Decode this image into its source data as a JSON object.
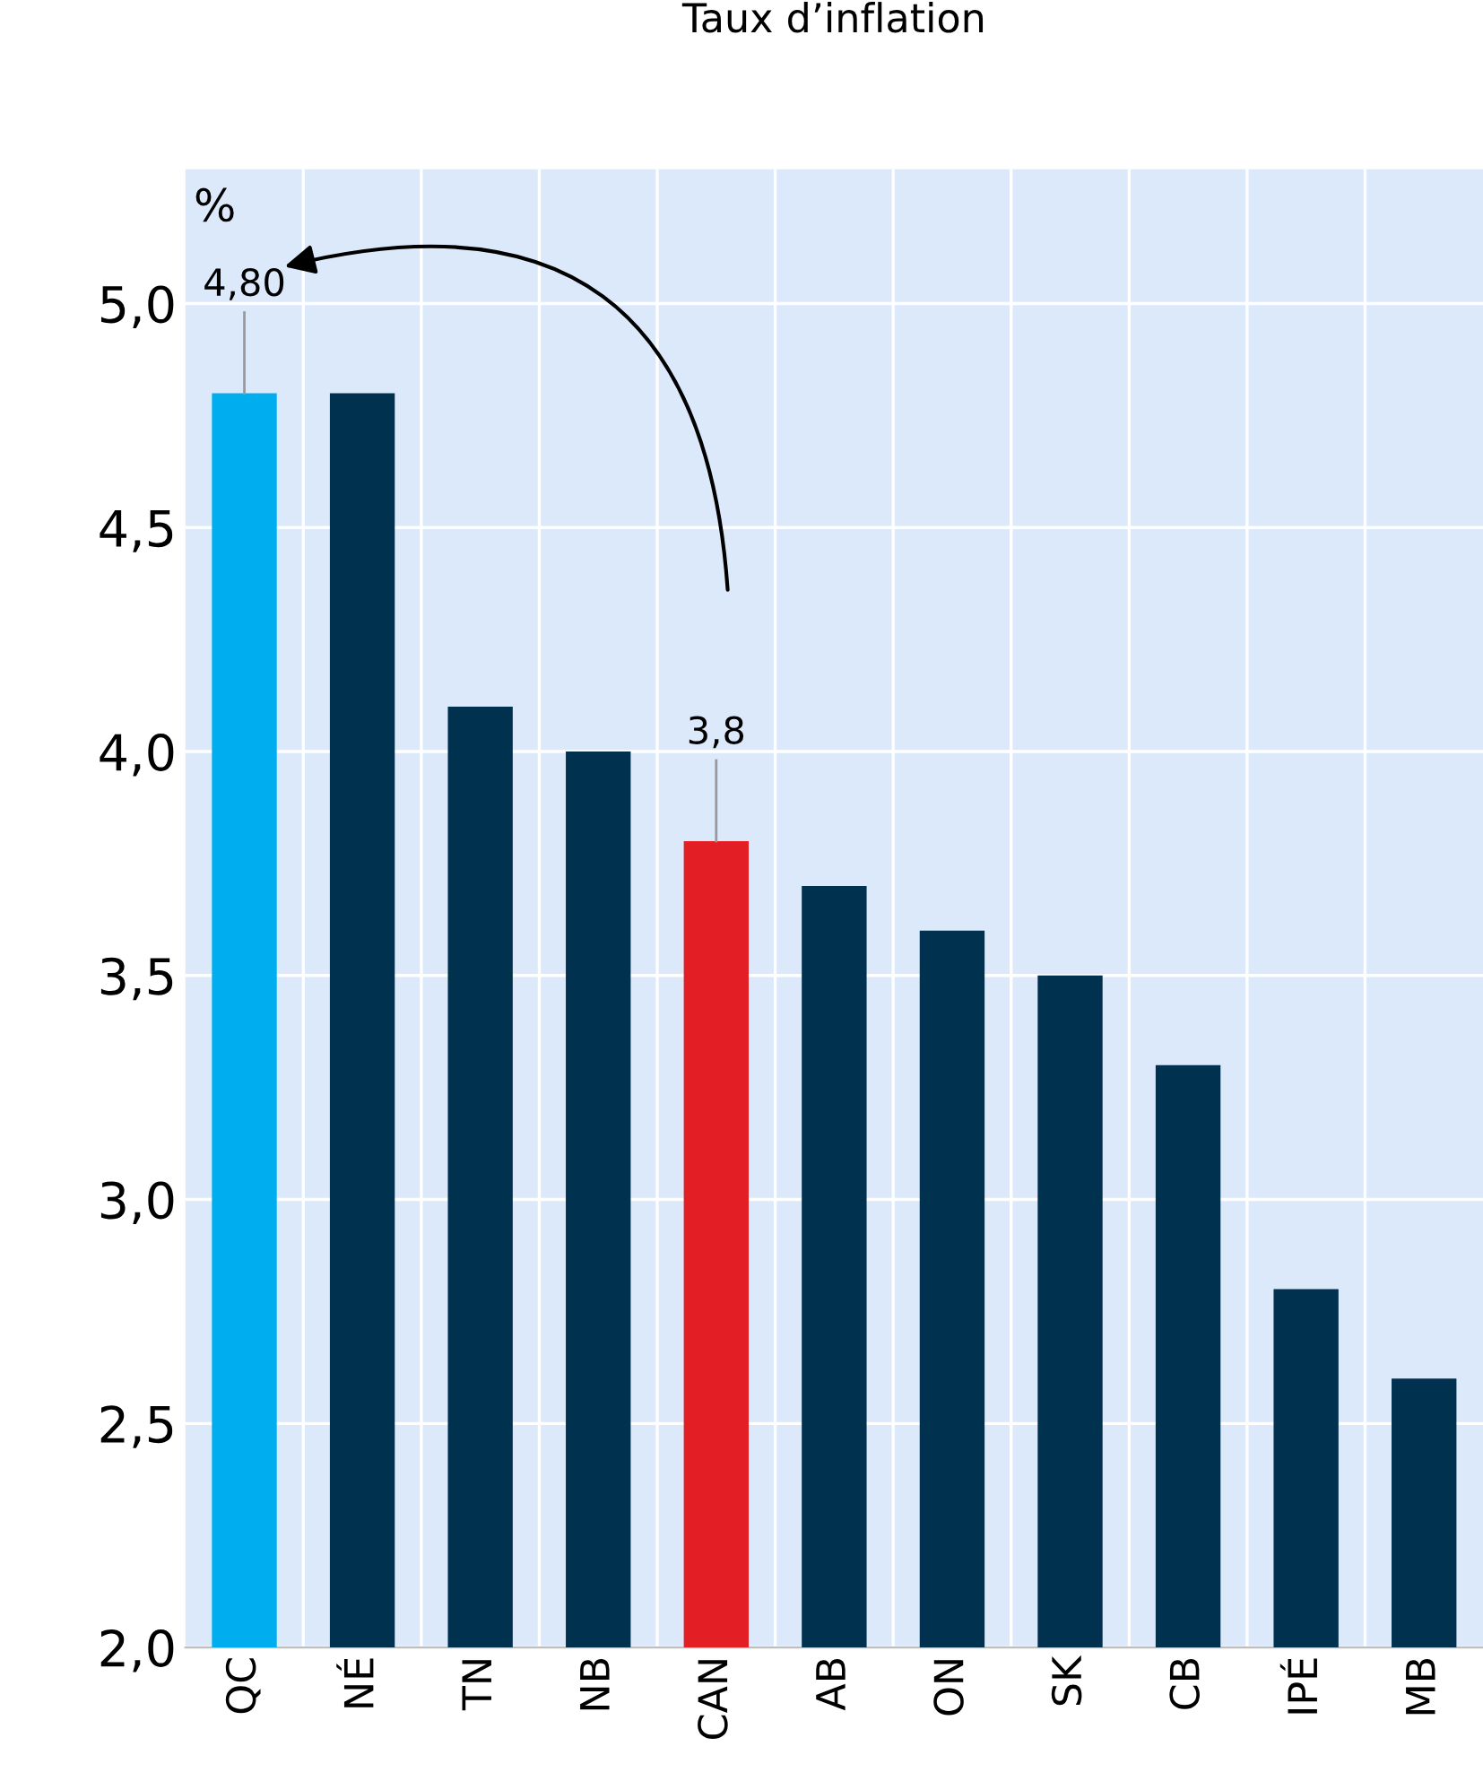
{
  "chart_data": {
    "type": "bar",
    "title": "Taux d’inflation",
    "ylabel": "%",
    "categories": [
      "QC",
      "NÉ",
      "TN",
      "NB",
      "CAN",
      "AB",
      "ON",
      "SK",
      "CB",
      "IPÉ",
      "MB"
    ],
    "values": [
      4.8,
      4.8,
      4.1,
      4.0,
      3.8,
      3.7,
      3.6,
      3.5,
      3.3,
      2.8,
      2.6
    ],
    "colors": [
      "#00aeef",
      "#00314f",
      "#00314f",
      "#00314f",
      "#e31e24",
      "#00314f",
      "#00314f",
      "#00314f",
      "#00314f",
      "#00314f",
      "#00314f"
    ],
    "value_labels": [
      "4,80",
      null,
      null,
      null,
      "3,8",
      null,
      null,
      null,
      null,
      null,
      null
    ],
    "ylim": [
      2.0,
      5.3
    ],
    "yticks": [
      {
        "value": 2.0,
        "label": "2,0"
      },
      {
        "value": 2.5,
        "label": "2,5"
      },
      {
        "value": 3.0,
        "label": "3,0"
      },
      {
        "value": 3.5,
        "label": "3,5"
      },
      {
        "value": 4.0,
        "label": "4,0"
      },
      {
        "value": 4.5,
        "label": "4,5"
      },
      {
        "value": 5.0,
        "label": "5,0"
      }
    ],
    "grid": true
  }
}
